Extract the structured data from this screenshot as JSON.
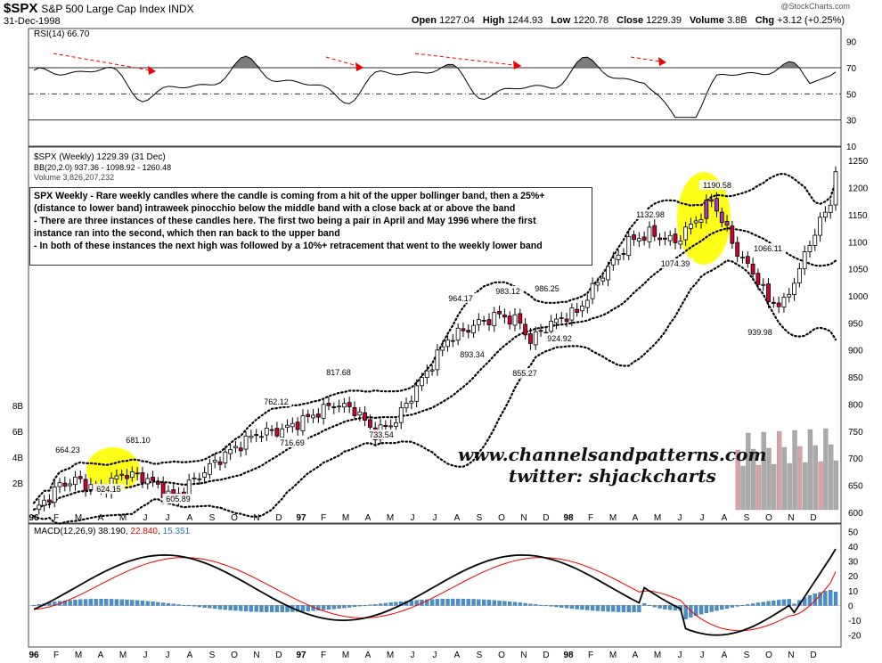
{
  "header": {
    "symbol": "$SPX",
    "name": "S&P 500 Large Cap Index INDX",
    "date": "31-Dec-1998",
    "credit": "@StockCharts.com",
    "open_label": "Open",
    "open": "1227.04",
    "high_label": "High",
    "high": "1244.93",
    "low_label": "Low",
    "low": "1220.78",
    "close_label": "Close",
    "close": "1229.39",
    "volume_label": "Volume",
    "volume": "3.8B",
    "chg_label": "Chg",
    "chg": "+3.12 (+0.25%)"
  },
  "legend": {
    "rsi": "RSI(14) 66.70",
    "price": "$SPX (Weekly) 1229.39 (31 Dec)",
    "bb": "BB(20,2.0) 937.36 - 1098.92 - 1260.48",
    "volume": "Volume 3,826,207,232",
    "macd_label": "MACD(12,26,9)",
    "macd_v1": "38.190",
    "macd_v2": "22.840",
    "macd_v3": "15.351"
  },
  "note": {
    "line1": "SPX Weekly - Rare weekly candles where the candle is coming from a hit of the upper bollinger band, then a 25%+",
    "line2": "(distance to lower band) intraweek pinocchio below the middle band with a close back at or above the band",
    "line3": "- There are three instances of these candles here. The first two being a pair in April and May 1996 where the first",
    "line4": "instance ran into the second, which then ran back to the upper band",
    "line5": "- In both of these instances the next high was followed by a 10%+ retracement that went to the weekly lower band"
  },
  "watermark": {
    "line1": "www.channelsandpatterns.com",
    "line2": "twitter: shjackcharts"
  },
  "colors": {
    "up": "#ffffff",
    "down": "#cc0033",
    "highlight": "#ffff00",
    "pinocchio": "#aa33cc",
    "macd": "#000000",
    "signal": "#ee0000",
    "histogram": "#4a90c8",
    "rsi_fill": "#666666"
  },
  "chart_data": [
    {
      "type": "line",
      "title": "RSI(14)",
      "ylim": [
        10,
        100
      ],
      "yticks": [
        10,
        30,
        50,
        70,
        90
      ],
      "overbought": 70,
      "oversold": 30,
      "last": 66.7
    },
    {
      "type": "candlestick",
      "title": "$SPX (Weekly)",
      "ylim": [
        580,
        1275
      ],
      "yticks": [
        600,
        650,
        700,
        750,
        800,
        850,
        900,
        950,
        1000,
        1050,
        1100,
        1150,
        1200,
        1250
      ],
      "x_labels": [
        "96",
        "F",
        "M",
        "A",
        "M",
        "J",
        "J",
        "A",
        "S",
        "O",
        "N",
        "D",
        "97",
        "F",
        "M",
        "A",
        "M",
        "J",
        "J",
        "A",
        "S",
        "O",
        "N",
        "D",
        "98",
        "F",
        "M",
        "A",
        "M",
        "J",
        "J",
        "A",
        "S",
        "O",
        "N",
        "D"
      ],
      "price_labels": [
        {
          "text": "664.23",
          "value": 664.23
        },
        {
          "text": "624.15",
          "value": 624.15
        },
        {
          "text": "681.10",
          "value": 681.1
        },
        {
          "text": "605.89",
          "value": 605.89
        },
        {
          "text": "762.12",
          "value": 762.12
        },
        {
          "text": "716.69",
          "value": 716.69
        },
        {
          "text": "817.68",
          "value": 817.68
        },
        {
          "text": "733.54",
          "value": 733.54
        },
        {
          "text": "964.17",
          "value": 964.17
        },
        {
          "text": "893.34",
          "value": 893.34
        },
        {
          "text": "983.12",
          "value": 983.12
        },
        {
          "text": "855.27",
          "value": 855.27
        },
        {
          "text": "986.25",
          "value": 986.25
        },
        {
          "text": "924.92",
          "value": 924.92
        },
        {
          "text": "1132.98",
          "value": 1132.98
        },
        {
          "text": "1074.39",
          "value": 1074.39
        },
        {
          "text": "1190.58",
          "value": 1190.58
        },
        {
          "text": "1066.11",
          "value": 1066.11
        },
        {
          "text": "939.98",
          "value": 939.98
        }
      ],
      "volume_ticks": [
        "2B",
        "4B",
        "6B",
        "8B"
      ]
    },
    {
      "type": "line",
      "title": "MACD(12,26,9)",
      "ylim": [
        -28,
        55
      ],
      "yticks": [
        -20,
        -10,
        0,
        10,
        20,
        30,
        40,
        50
      ],
      "series": [
        {
          "name": "MACD",
          "last": 38.19
        },
        {
          "name": "Signal",
          "last": 22.84
        },
        {
          "name": "Histogram",
          "last": 15.351
        }
      ]
    }
  ]
}
